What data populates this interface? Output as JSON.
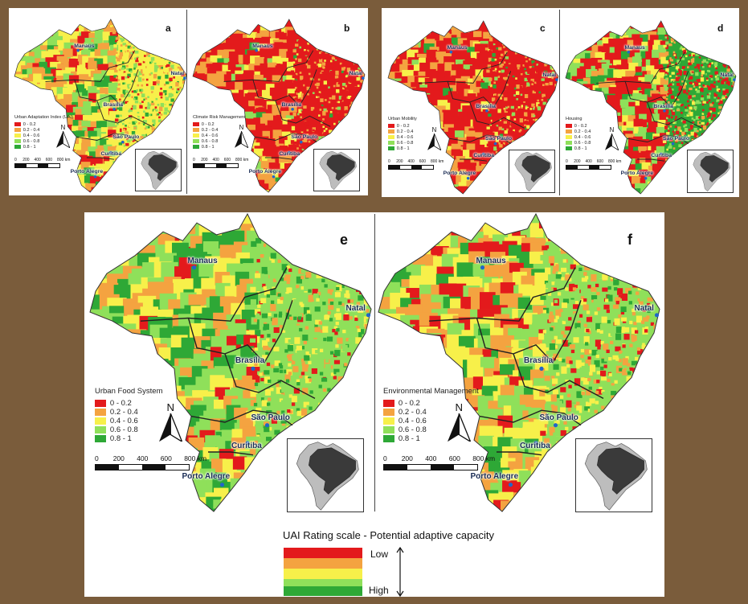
{
  "colors": {
    "class_0_02": "#e31a1c",
    "class_02_04": "#f4a340",
    "class_04_06": "#f7f04a",
    "class_06_08": "#8fe05a",
    "class_08_1": "#2ea836",
    "background": "#7a5c3b",
    "city_marker": "#2166c8"
  },
  "legend_classes": [
    "0 - 0.2",
    "0.2 - 0.4",
    "0.4 - 0.6",
    "0.6 - 0.8",
    "0.8 - 1"
  ],
  "scale_ticks": [
    "0",
    "200",
    "400",
    "600",
    "800 km"
  ],
  "north_label": "N",
  "cities": [
    "Manaus",
    "Natal",
    "Brasília",
    "São Paulo",
    "Curitiba",
    "Porto Alegre"
  ],
  "panels": [
    {
      "letter": "a",
      "title": "Urban Adaptation Index (UAI)",
      "dominant": "mixed"
    },
    {
      "letter": "b",
      "title": "Climate Risk Management",
      "dominant": "red"
    },
    {
      "letter": "c",
      "title": "Urban Mobility",
      "dominant": "red"
    },
    {
      "letter": "d",
      "title": "Housing",
      "dominant": "red-green"
    },
    {
      "letter": "e",
      "title": "Urban Food System",
      "dominant": "green"
    },
    {
      "letter": "f",
      "title": "Environmental Management",
      "dominant": "mixed"
    }
  ],
  "rating_scale": {
    "title": "UAI Rating scale - Potential adaptive capacity",
    "low_label": "Low",
    "high_label": "High"
  }
}
